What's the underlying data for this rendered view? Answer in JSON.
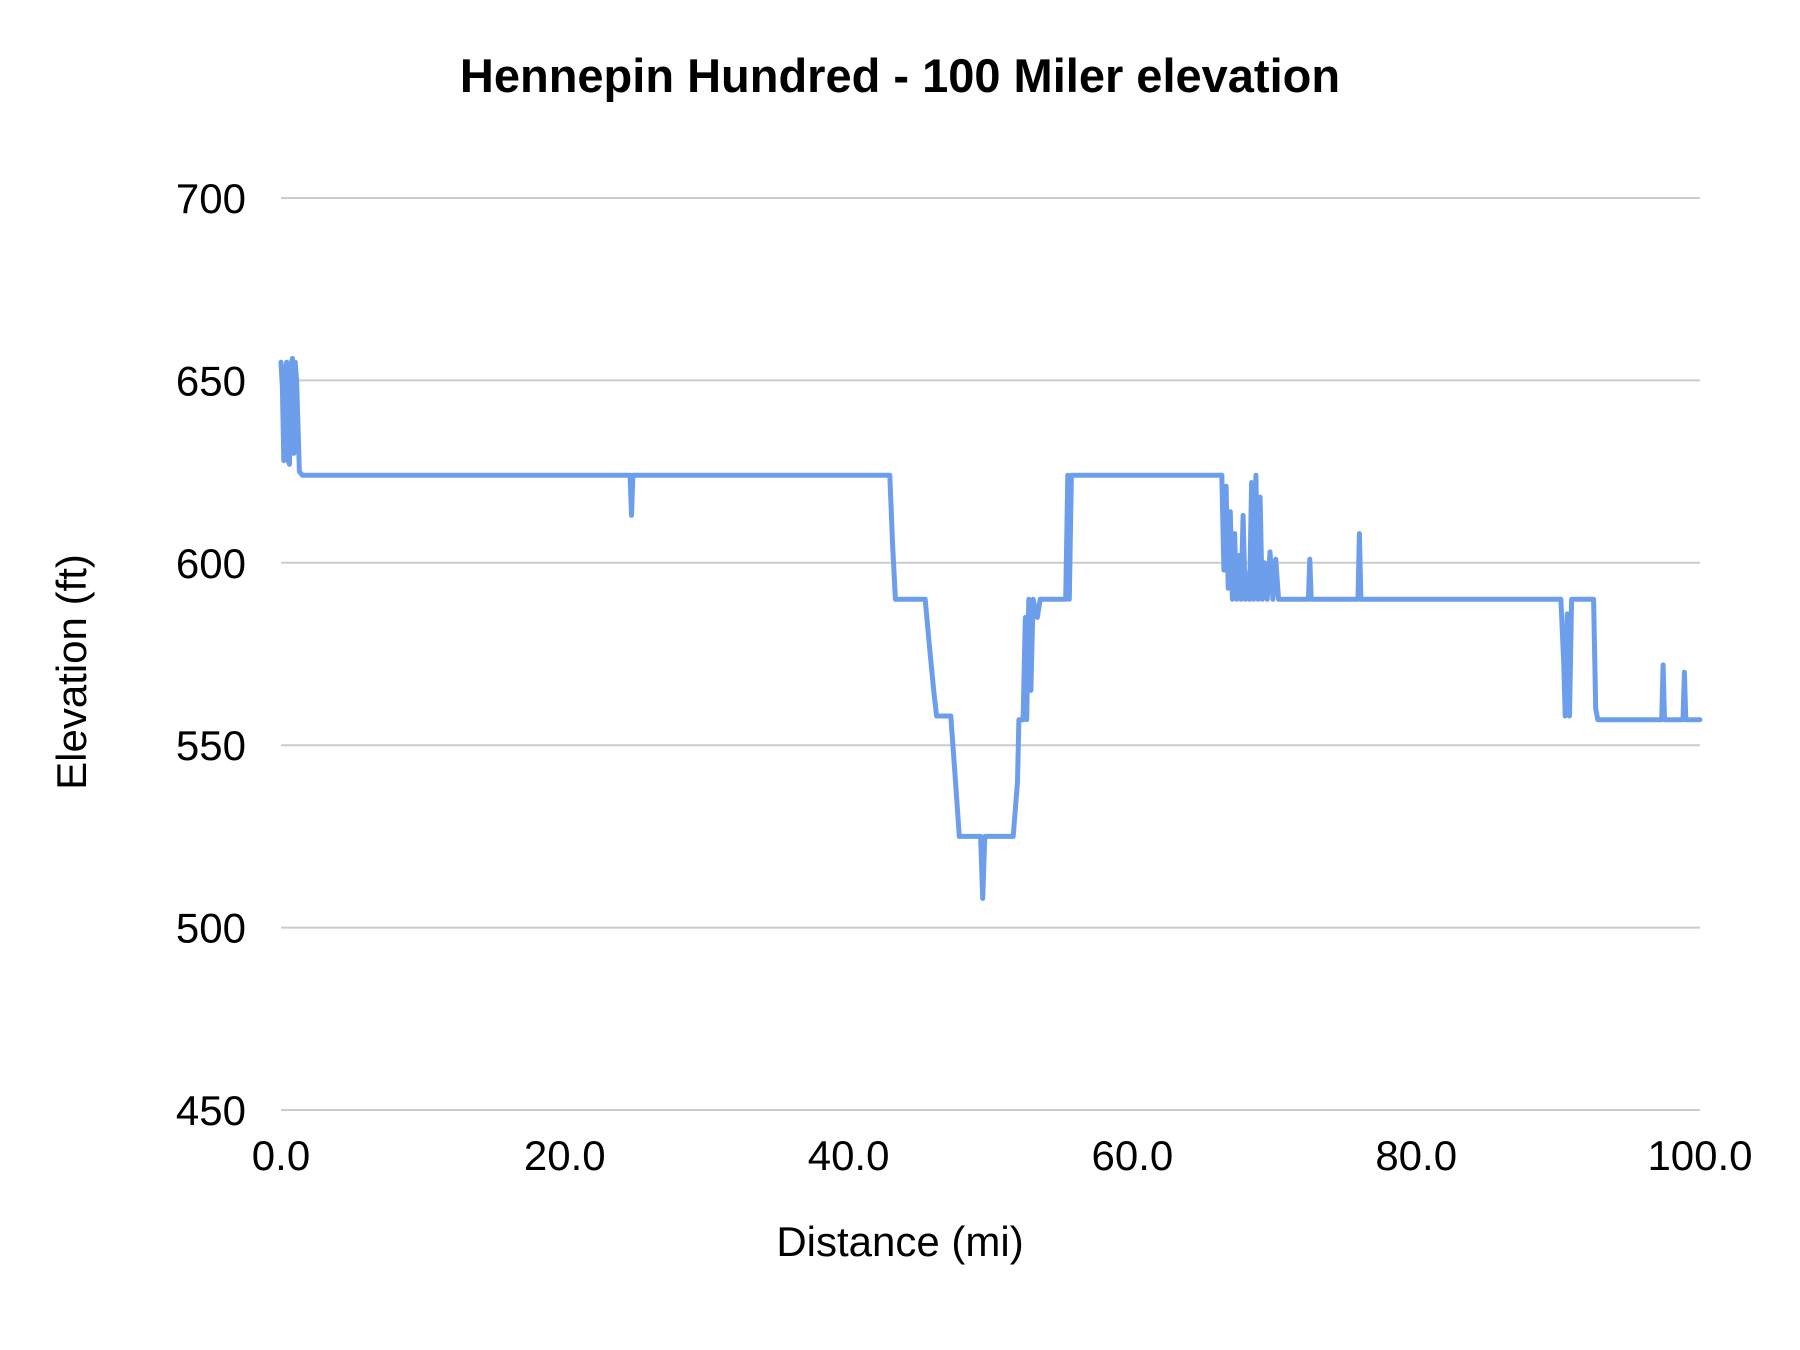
{
  "chart_data": {
    "type": "line",
    "title": "Hennepin Hundred - 100 Miler elevation",
    "xlabel": "Distance (mi)",
    "ylabel": "Elevation (ft)",
    "xlim": [
      0,
      100
    ],
    "ylim": [
      450,
      700
    ],
    "grid": true,
    "legend_position": "none",
    "line_color": "#6d9eeb",
    "grid_color": "#cccccc",
    "text_color": "#000000",
    "xticks": [
      {
        "value": 0,
        "label": "0.0"
      },
      {
        "value": 20,
        "label": "20.0"
      },
      {
        "value": 40,
        "label": "40.0"
      },
      {
        "value": 60,
        "label": "60.0"
      },
      {
        "value": 80,
        "label": "80.0"
      },
      {
        "value": 100,
        "label": "100.0"
      }
    ],
    "yticks": [
      {
        "value": 450,
        "label": "450"
      },
      {
        "value": 500,
        "label": "500"
      },
      {
        "value": 550,
        "label": "550"
      },
      {
        "value": 600,
        "label": "600"
      },
      {
        "value": 650,
        "label": "650"
      },
      {
        "value": 700,
        "label": "700"
      }
    ],
    "series": [
      {
        "name": "Elevation",
        "points": [
          [
            0,
            655
          ],
          [
            0.1,
            648
          ],
          [
            0.2,
            628
          ],
          [
            0.3,
            652
          ],
          [
            0.4,
            655
          ],
          [
            0.5,
            628
          ],
          [
            0.6,
            627
          ],
          [
            0.7,
            654
          ],
          [
            0.8,
            656
          ],
          [
            0.9,
            630
          ],
          [
            1.0,
            655
          ],
          [
            1.1,
            650
          ],
          [
            1.3,
            625
          ],
          [
            1.5,
            624
          ],
          [
            24.6,
            624
          ],
          [
            24.7,
            613
          ],
          [
            24.8,
            624
          ],
          [
            42.9,
            624
          ],
          [
            43.1,
            605
          ],
          [
            43.3,
            590
          ],
          [
            45.4,
            590
          ],
          [
            45.7,
            577
          ],
          [
            46.0,
            565
          ],
          [
            46.2,
            558
          ],
          [
            47.2,
            558
          ],
          [
            47.5,
            542
          ],
          [
            47.8,
            525
          ],
          [
            49.3,
            525
          ],
          [
            49.45,
            508
          ],
          [
            49.6,
            525
          ],
          [
            51.6,
            525
          ],
          [
            51.9,
            540
          ],
          [
            52.0,
            557
          ],
          [
            52.3,
            557
          ],
          [
            52.45,
            585
          ],
          [
            52.55,
            557
          ],
          [
            52.7,
            590
          ],
          [
            52.85,
            565
          ],
          [
            53.0,
            590
          ],
          [
            53.3,
            585
          ],
          [
            53.5,
            590
          ],
          [
            55.3,
            590
          ],
          [
            55.45,
            624
          ],
          [
            55.55,
            590
          ],
          [
            55.7,
            624
          ],
          [
            66.3,
            624
          ],
          [
            66.45,
            598
          ],
          [
            66.6,
            621
          ],
          [
            66.75,
            593
          ],
          [
            66.9,
            614
          ],
          [
            67.05,
            590
          ],
          [
            67.2,
            608
          ],
          [
            67.35,
            590
          ],
          [
            67.5,
            602
          ],
          [
            67.65,
            590
          ],
          [
            67.8,
            613
          ],
          [
            67.95,
            590
          ],
          [
            68.1,
            597
          ],
          [
            68.25,
            590
          ],
          [
            68.4,
            622
          ],
          [
            68.55,
            590
          ],
          [
            68.7,
            624
          ],
          [
            68.85,
            590
          ],
          [
            69.0,
            618
          ],
          [
            69.15,
            590
          ],
          [
            69.3,
            600
          ],
          [
            69.5,
            590
          ],
          [
            69.7,
            603
          ],
          [
            69.9,
            590
          ],
          [
            70.1,
            601
          ],
          [
            70.3,
            590
          ],
          [
            72.4,
            590
          ],
          [
            72.5,
            601
          ],
          [
            72.6,
            590
          ],
          [
            75.9,
            590
          ],
          [
            76.0,
            608
          ],
          [
            76.1,
            590
          ],
          [
            90.2,
            590
          ],
          [
            90.4,
            572
          ],
          [
            90.5,
            558
          ],
          [
            90.65,
            586
          ],
          [
            90.8,
            558
          ],
          [
            90.95,
            590
          ],
          [
            92.5,
            590
          ],
          [
            92.65,
            560
          ],
          [
            92.8,
            557
          ],
          [
            97.3,
            557
          ],
          [
            97.4,
            572
          ],
          [
            97.5,
            557
          ],
          [
            98.8,
            557
          ],
          [
            98.9,
            570
          ],
          [
            99.0,
            557
          ],
          [
            100,
            557
          ]
        ]
      }
    ]
  }
}
